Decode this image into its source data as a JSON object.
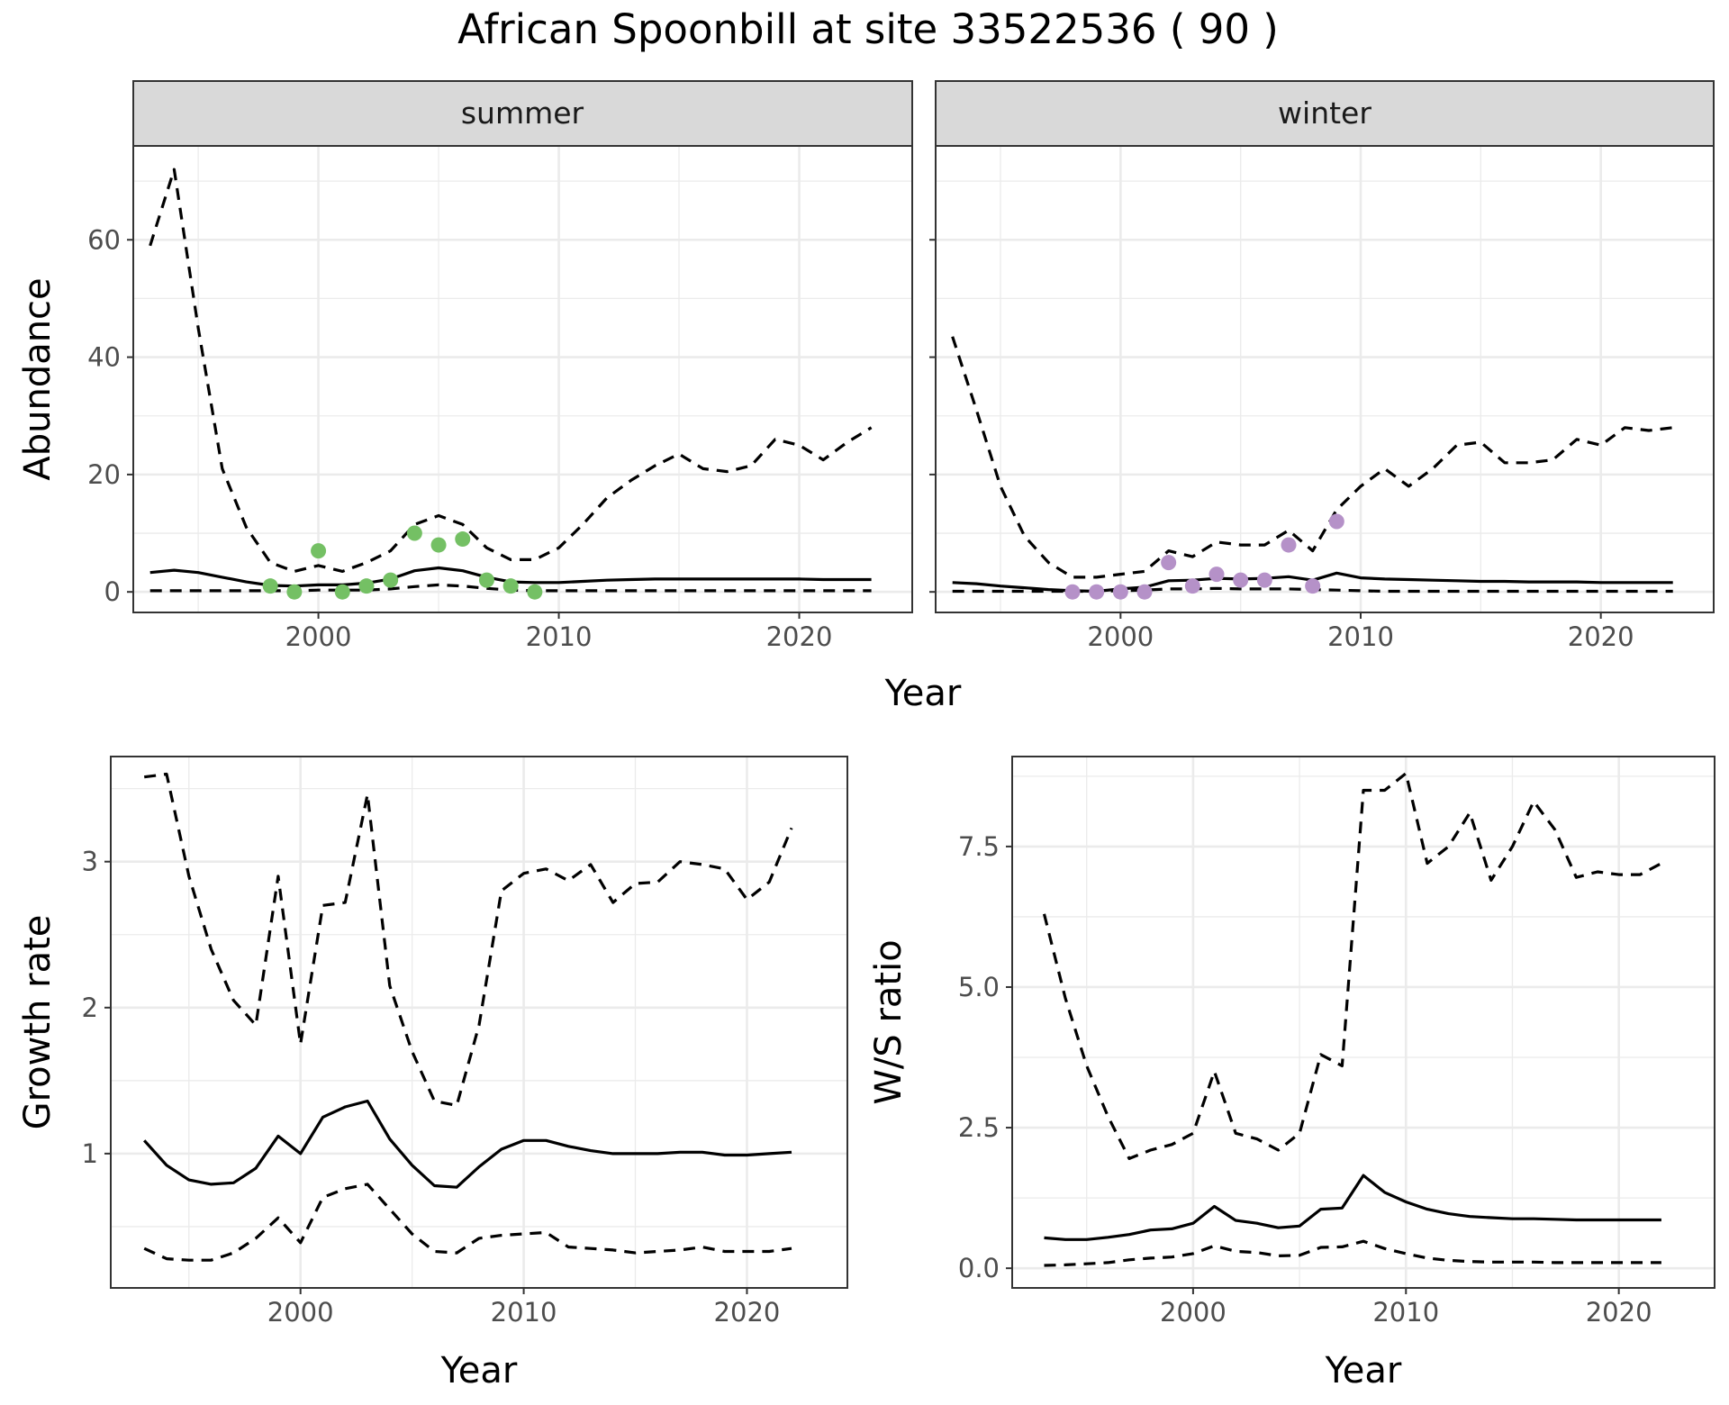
{
  "title": "African Spoonbill at site 33522536 ( 90 )",
  "colors": {
    "summer_points": "#74c064",
    "winter_points": "#b591c8",
    "lines": "#000000"
  },
  "chart_data": [
    {
      "type": "line",
      "facet": "summer",
      "xlabel": "Year",
      "ylabel": "Abundance",
      "xlim": [
        1992.3,
        2024.7
      ],
      "ylim": [
        -3.5,
        76
      ],
      "xticks": [
        2000,
        2010,
        2020
      ],
      "yticks": [
        0,
        20,
        40,
        60
      ],
      "grid": true,
      "series": [
        {
          "role": "upper",
          "style": "dashed",
          "x": [
            1993,
            1994,
            1995,
            1996,
            1997,
            1998,
            1999,
            2000,
            2001,
            2002,
            2003,
            2004,
            2005,
            2006,
            2007,
            2008,
            2009,
            2010,
            2011,
            2012,
            2013,
            2014,
            2015,
            2016,
            2017,
            2018,
            2019,
            2020,
            2021,
            2022,
            2023
          ],
          "y": [
            59,
            72,
            45,
            21,
            11,
            5,
            3.5,
            4.5,
            3.5,
            5,
            7,
            11.5,
            13,
            11.5,
            7.5,
            5.5,
            5.5,
            7.5,
            11.5,
            16,
            19,
            21.5,
            23.5,
            21,
            20.5,
            21.5,
            26,
            25,
            22.5,
            25.5,
            28
          ]
        },
        {
          "role": "mean",
          "style": "solid",
          "x": [
            1993,
            1994,
            1995,
            1996,
            1997,
            1998,
            1999,
            2000,
            2001,
            2002,
            2003,
            2004,
            2005,
            2006,
            2007,
            2008,
            2009,
            2010,
            2011,
            2012,
            2013,
            2014,
            2015,
            2016,
            2017,
            2018,
            2019,
            2020,
            2021,
            2022,
            2023
          ],
          "y": [
            3.3,
            3.7,
            3.3,
            2.5,
            1.7,
            1.1,
            1,
            1.2,
            1.2,
            1.5,
            2.2,
            3.6,
            4.1,
            3.6,
            2.5,
            1.7,
            1.6,
            1.6,
            1.8,
            2,
            2.1,
            2.2,
            2.2,
            2.2,
            2.2,
            2.2,
            2.2,
            2.2,
            2.1,
            2.1,
            2.1
          ]
        },
        {
          "role": "lower",
          "style": "dashed",
          "x": [
            1993,
            1994,
            1995,
            1996,
            1997,
            1998,
            1999,
            2000,
            2001,
            2002,
            2003,
            2004,
            2005,
            2006,
            2007,
            2008,
            2009,
            2010,
            2011,
            2012,
            2013,
            2014,
            2015,
            2016,
            2017,
            2018,
            2019,
            2020,
            2021,
            2022,
            2023
          ],
          "y": [
            0.2,
            0.2,
            0.2,
            0.2,
            0.2,
            0.2,
            0.2,
            0.3,
            0.3,
            0.3,
            0.5,
            0.9,
            1.2,
            1,
            0.6,
            0.3,
            0.2,
            0.2,
            0.2,
            0.2,
            0.2,
            0.2,
            0.2,
            0.2,
            0.2,
            0.2,
            0.2,
            0.2,
            0.2,
            0.2,
            0.2
          ]
        }
      ],
      "points": {
        "x": [
          1998,
          1999,
          2000,
          2001,
          2002,
          2003,
          2004,
          2005,
          2006,
          2007,
          2008,
          2009
        ],
        "y": [
          1,
          0,
          7,
          0,
          1,
          2,
          10,
          8,
          9,
          2,
          1,
          0
        ]
      }
    },
    {
      "type": "line",
      "facet": "winter",
      "xlabel": "Year",
      "ylabel": "Abundance",
      "xlim": [
        1992.3,
        2024.7
      ],
      "ylim": [
        -3.5,
        76
      ],
      "xticks": [
        2000,
        2010,
        2020
      ],
      "yticks": [
        0,
        20,
        40,
        60
      ],
      "grid": true,
      "series": [
        {
          "role": "upper",
          "style": "dashed",
          "x": [
            1993,
            1994,
            1995,
            1996,
            1997,
            1998,
            1999,
            2000,
            2001,
            2002,
            2003,
            2004,
            2005,
            2006,
            2007,
            2008,
            2009,
            2010,
            2011,
            2012,
            2013,
            2014,
            2015,
            2016,
            2017,
            2018,
            2019,
            2020,
            2021,
            2022,
            2023
          ],
          "y": [
            43.5,
            31,
            18,
            9.5,
            5,
            2.5,
            2.5,
            3,
            3.5,
            7,
            6,
            8.5,
            8,
            8,
            10.5,
            7,
            14,
            18,
            21,
            18,
            21,
            25,
            25.5,
            22,
            22,
            22.5,
            26,
            25,
            28,
            27.5,
            28
          ]
        },
        {
          "role": "mean",
          "style": "solid",
          "x": [
            1993,
            1994,
            1995,
            1996,
            1997,
            1998,
            1999,
            2000,
            2001,
            2002,
            2003,
            2004,
            2005,
            2006,
            2007,
            2008,
            2009,
            2010,
            2011,
            2012,
            2013,
            2014,
            2015,
            2016,
            2017,
            2018,
            2019,
            2020,
            2021,
            2022,
            2023
          ],
          "y": [
            1.6,
            1.4,
            1,
            0.7,
            0.4,
            0.2,
            0.1,
            0.5,
            0.8,
            1.9,
            2,
            2.3,
            2.2,
            2.3,
            2.6,
            2,
            3.2,
            2.4,
            2.2,
            2.1,
            2,
            1.9,
            1.8,
            1.8,
            1.7,
            1.7,
            1.7,
            1.6,
            1.6,
            1.6,
            1.6
          ]
        },
        {
          "role": "lower",
          "style": "dashed",
          "x": [
            1993,
            1994,
            1995,
            1996,
            1997,
            1998,
            1999,
            2000,
            2001,
            2002,
            2003,
            2004,
            2005,
            2006,
            2007,
            2008,
            2009,
            2010,
            2011,
            2012,
            2013,
            2014,
            2015,
            2016,
            2017,
            2018,
            2019,
            2020,
            2021,
            2022,
            2023
          ],
          "y": [
            0.1,
            0.1,
            0.1,
            0.1,
            0.1,
            0.1,
            0.1,
            0.2,
            0.3,
            0.5,
            0.5,
            0.6,
            0.5,
            0.5,
            0.5,
            0.4,
            0.3,
            0.2,
            0.1,
            0.1,
            0.1,
            0.1,
            0.1,
            0.1,
            0.1,
            0.1,
            0.1,
            0.1,
            0.1,
            0.1,
            0.1
          ]
        }
      ],
      "points": {
        "x": [
          1998,
          1999,
          2000,
          2001,
          2002,
          2003,
          2004,
          2005,
          2006,
          2007,
          2008,
          2009
        ],
        "y": [
          0,
          0,
          0,
          0,
          5,
          1,
          3,
          2,
          2,
          8,
          1,
          12
        ]
      }
    },
    {
      "type": "line",
      "xlabel": "Year",
      "ylabel": "Growth rate",
      "xlim": [
        1991.5,
        2024.5
      ],
      "ylim": [
        0.08,
        3.72
      ],
      "xticks": [
        2000,
        2010,
        2020
      ],
      "yticks": [
        1,
        2,
        3
      ],
      "grid": true,
      "series": [
        {
          "role": "upper",
          "style": "dashed",
          "x": [
            1993,
            1994,
            1995,
            1996,
            1997,
            1998,
            1999,
            2000,
            2001,
            2002,
            2003,
            2004,
            2005,
            2006,
            2007,
            2008,
            2009,
            2010,
            2011,
            2012,
            2013,
            2014,
            2015,
            2016,
            2017,
            2018,
            2019,
            2020,
            2021,
            2022
          ],
          "y": [
            3.58,
            3.6,
            2.9,
            2.4,
            2.05,
            1.88,
            2.9,
            1.75,
            2.7,
            2.72,
            3.46,
            2.15,
            1.7,
            1.36,
            1.33,
            1.88,
            2.8,
            2.92,
            2.95,
            2.87,
            2.98,
            2.72,
            2.85,
            2.86,
            3,
            2.98,
            2.95,
            2.74,
            2.86,
            3.23
          ]
        },
        {
          "role": "mean",
          "style": "solid",
          "x": [
            1993,
            1994,
            1995,
            1996,
            1997,
            1998,
            1999,
            2000,
            2001,
            2002,
            2003,
            2004,
            2005,
            2006,
            2007,
            2008,
            2009,
            2010,
            2011,
            2012,
            2013,
            2014,
            2015,
            2016,
            2017,
            2018,
            2019,
            2020,
            2021,
            2022
          ],
          "y": [
            1.09,
            0.92,
            0.82,
            0.79,
            0.8,
            0.9,
            1.12,
            1,
            1.25,
            1.32,
            1.36,
            1.1,
            0.92,
            0.78,
            0.77,
            0.91,
            1.03,
            1.09,
            1.09,
            1.05,
            1.02,
            1,
            1,
            1,
            1.01,
            1.01,
            0.99,
            0.99,
            1,
            1.01
          ]
        },
        {
          "role": "lower",
          "style": "dashed",
          "x": [
            1993,
            1994,
            1995,
            1996,
            1997,
            1998,
            1999,
            2000,
            2001,
            2002,
            2003,
            2004,
            2005,
            2006,
            2007,
            2008,
            2009,
            2010,
            2011,
            2012,
            2013,
            2014,
            2015,
            2016,
            2017,
            2018,
            2019,
            2020,
            2021,
            2022
          ],
          "y": [
            0.35,
            0.28,
            0.27,
            0.27,
            0.32,
            0.42,
            0.56,
            0.39,
            0.7,
            0.76,
            0.79,
            0.62,
            0.45,
            0.33,
            0.32,
            0.42,
            0.44,
            0.45,
            0.46,
            0.36,
            0.35,
            0.34,
            0.32,
            0.33,
            0.34,
            0.36,
            0.33,
            0.33,
            0.33,
            0.35
          ]
        }
      ]
    },
    {
      "type": "line",
      "xlabel": "Year",
      "ylabel": "W/S ratio",
      "xlim": [
        1991.5,
        2024.5
      ],
      "ylim": [
        -0.35,
        9.1
      ],
      "xticks": [
        2000,
        2010,
        2020
      ],
      "yticks": [
        0,
        2.5,
        5,
        7.5
      ],
      "ytick_labels": [
        "0.0",
        "2.5",
        "5.0",
        "7.5"
      ],
      "grid": true,
      "series": [
        {
          "role": "upper",
          "style": "dashed",
          "x": [
            1993,
            1994,
            1995,
            1996,
            1997,
            1998,
            1999,
            2000,
            2001,
            2002,
            2003,
            2004,
            2005,
            2006,
            2007,
            2008,
            2009,
            2010,
            2011,
            2012,
            2013,
            2014,
            2015,
            2016,
            2017,
            2018,
            2019,
            2020,
            2021,
            2022
          ],
          "y": [
            6.3,
            4.8,
            3.6,
            2.7,
            1.95,
            2.1,
            2.2,
            2.4,
            3.5,
            2.4,
            2.3,
            2.1,
            2.4,
            3.8,
            3.6,
            8.5,
            8.5,
            8.8,
            7.2,
            7.5,
            8.1,
            6.9,
            7.5,
            8.3,
            7.8,
            6.95,
            7.05,
            7,
            7,
            7.2
          ]
        },
        {
          "role": "mean",
          "style": "solid",
          "x": [
            1993,
            1994,
            1995,
            1996,
            1997,
            1998,
            1999,
            2000,
            2001,
            2002,
            2003,
            2004,
            2005,
            2006,
            2007,
            2008,
            2009,
            2010,
            2011,
            2012,
            2013,
            2014,
            2015,
            2016,
            2017,
            2018,
            2019,
            2020,
            2021,
            2022
          ],
          "y": [
            0.54,
            0.51,
            0.51,
            0.55,
            0.6,
            0.68,
            0.7,
            0.8,
            1.1,
            0.85,
            0.8,
            0.72,
            0.75,
            1.05,
            1.07,
            1.65,
            1.35,
            1.18,
            1.05,
            0.97,
            0.92,
            0.9,
            0.88,
            0.88,
            0.87,
            0.86,
            0.86,
            0.86,
            0.86,
            0.86
          ]
        },
        {
          "role": "lower",
          "style": "dashed",
          "x": [
            1993,
            1994,
            1995,
            1996,
            1997,
            1998,
            1999,
            2000,
            2001,
            2002,
            2003,
            2004,
            2005,
            2006,
            2007,
            2008,
            2009,
            2010,
            2011,
            2012,
            2013,
            2014,
            2015,
            2016,
            2017,
            2018,
            2019,
            2020,
            2021,
            2022
          ],
          "y": [
            0.05,
            0.06,
            0.08,
            0.1,
            0.15,
            0.18,
            0.2,
            0.26,
            0.4,
            0.3,
            0.28,
            0.22,
            0.23,
            0.37,
            0.38,
            0.48,
            0.35,
            0.26,
            0.18,
            0.14,
            0.12,
            0.11,
            0.11,
            0.11,
            0.1,
            0.1,
            0.1,
            0.1,
            0.1,
            0.1
          ]
        }
      ]
    }
  ]
}
